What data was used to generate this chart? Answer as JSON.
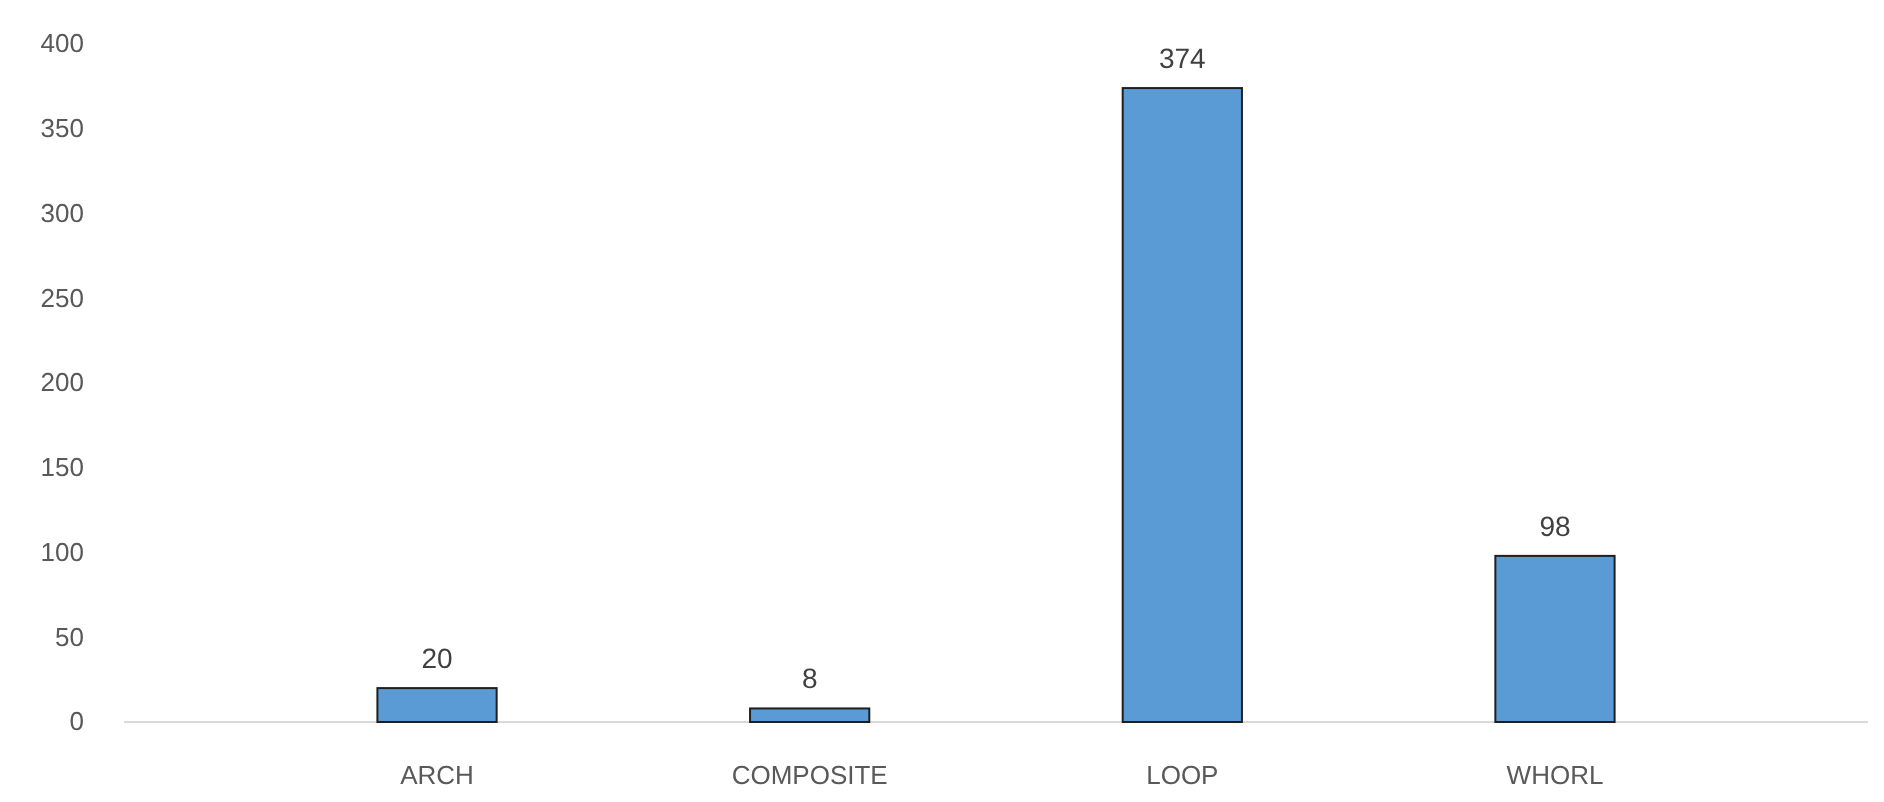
{
  "chart_data": {
    "type": "bar",
    "categories": [
      "ARCH",
      "COMPOSITE",
      "LOOP",
      "WHORL"
    ],
    "values": [
      20,
      8,
      374,
      98
    ],
    "color": "#5b9bd5",
    "ylim": [
      0,
      400
    ],
    "yticks": [
      0,
      50,
      100,
      150,
      200,
      250,
      300,
      350,
      400
    ],
    "grid": false,
    "data_labels": true
  }
}
